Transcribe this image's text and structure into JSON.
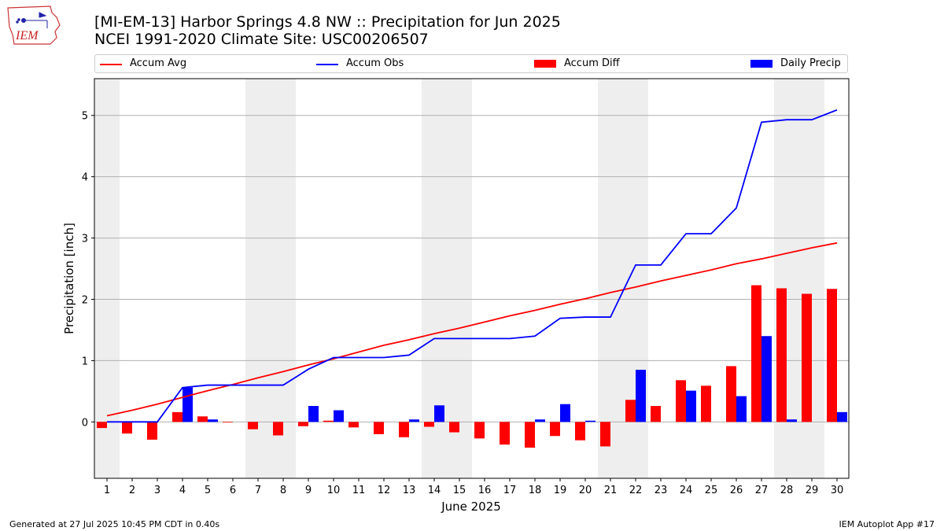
{
  "header": {
    "title_line1": "[MI-EM-13] Harbor Springs 4.8 NW :: Precipitation for Jun 2025",
    "title_line2": "NCEI 1991-2020 Climate Site: USC00206507",
    "logo_text": "IEM"
  },
  "legend": {
    "items": [
      {
        "label": "Accum Avg",
        "kind": "line",
        "color": "#ff0000"
      },
      {
        "label": "Accum Obs",
        "kind": "line",
        "color": "#0000ff"
      },
      {
        "label": "Accum Diff",
        "kind": "bar",
        "color": "#ff0000"
      },
      {
        "label": "Daily Precip",
        "kind": "bar",
        "color": "#0000ff"
      }
    ]
  },
  "footer": {
    "left": "Generated at 27 Jul 2025 10:45 PM CDT in 0.40s",
    "right": "IEM Autoplot App #17"
  },
  "chart_data": {
    "type": "bar",
    "xlabel": "June 2025",
    "ylabel": "Precipitation [inch]",
    "ylim": [
      -0.92,
      5.6
    ],
    "yticks": [
      0,
      1,
      2,
      3,
      4,
      5
    ],
    "x": [
      1,
      2,
      3,
      4,
      5,
      6,
      7,
      8,
      9,
      10,
      11,
      12,
      13,
      14,
      15,
      16,
      17,
      18,
      19,
      20,
      21,
      22,
      23,
      24,
      25,
      26,
      27,
      28,
      29,
      30
    ],
    "weekend_days": [
      1,
      7,
      8,
      14,
      15,
      21,
      22,
      28,
      29
    ],
    "grid": "horizontal",
    "series": [
      {
        "name": "Accum Avg",
        "kind": "line",
        "color": "#ff0000",
        "values": [
          0.1,
          0.19,
          0.29,
          0.4,
          0.51,
          0.61,
          0.72,
          0.82,
          0.93,
          1.03,
          1.14,
          1.25,
          1.34,
          1.44,
          1.53,
          1.63,
          1.73,
          1.82,
          1.92,
          2.01,
          2.11,
          2.2,
          2.3,
          2.39,
          2.48,
          2.58,
          2.66,
          2.75,
          2.84,
          2.92
        ]
      },
      {
        "name": "Accum Obs",
        "kind": "line",
        "color": "#0000ff",
        "values": [
          0.0,
          0.0,
          0.0,
          0.56,
          0.6,
          0.6,
          0.6,
          0.6,
          0.86,
          1.05,
          1.05,
          1.05,
          1.09,
          1.36,
          1.36,
          1.36,
          1.36,
          1.4,
          1.69,
          1.71,
          1.71,
          2.56,
          2.56,
          3.07,
          3.07,
          3.49,
          4.89,
          4.93,
          4.93,
          5.09
        ]
      },
      {
        "name": "Accum Diff",
        "kind": "bar",
        "color": "#ff0000",
        "values": [
          -0.1,
          -0.19,
          -0.29,
          0.16,
          0.09,
          -0.01,
          -0.12,
          -0.22,
          -0.07,
          0.02,
          -0.09,
          -0.2,
          -0.25,
          -0.08,
          -0.17,
          -0.27,
          -0.37,
          -0.42,
          -0.23,
          -0.3,
          -0.4,
          0.36,
          0.26,
          0.68,
          0.59,
          0.91,
          2.23,
          2.18,
          2.09,
          2.17
        ]
      },
      {
        "name": "Daily Precip",
        "kind": "bar",
        "color": "#0000ff",
        "values": [
          0.0,
          0.0,
          0.0,
          0.56,
          0.04,
          0.0,
          0.0,
          0.0,
          0.26,
          0.19,
          0.0,
          0.0,
          0.04,
          0.27,
          0.0,
          0.0,
          0.0,
          0.04,
          0.29,
          0.02,
          0.0,
          0.85,
          0.0,
          0.51,
          0.0,
          0.42,
          1.4,
          0.04,
          0.0,
          0.16
        ]
      }
    ]
  }
}
